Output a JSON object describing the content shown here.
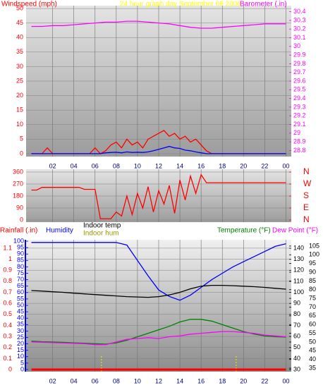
{
  "chart_data": [
    {
      "type": "line",
      "title": "24 hour graph day September 09 2006",
      "xlim": [
        -0.5,
        24.5
      ],
      "xticks": [
        {
          "value": 2,
          "label": "02"
        },
        {
          "value": 4,
          "label": "04"
        },
        {
          "value": 6,
          "label": "06"
        },
        {
          "value": 8,
          "label": "08"
        },
        10,
        12,
        14,
        16,
        18,
        20,
        22,
        {
          "value": 24,
          "label": "00"
        }
      ],
      "axes": [
        {
          "side": "left",
          "label": "Windspeed (mph)",
          "color": "#ff0000",
          "lim": [
            -1,
            51
          ],
          "ticks": [
            0,
            5,
            10,
            15,
            20,
            25,
            30,
            35,
            40,
            45,
            50
          ]
        },
        {
          "side": "right",
          "label": "Barometer (.in)",
          "color": "#ff00ff",
          "lim": [
            28.73,
            30.47
          ],
          "ticks": [
            28.8,
            28.9,
            29,
            29.1,
            29.2,
            29.3,
            29.4,
            29.5,
            29.6,
            29.7,
            29.8,
            29.9,
            30,
            30.1,
            30.2,
            30.3,
            30.4
          ]
        }
      ],
      "series": [
        {
          "color": "#ff0000",
          "axis": 0,
          "x": [
            0,
            0.5,
            1,
            1.5,
            2,
            2.5,
            3,
            3.5,
            4,
            4.5,
            5,
            5.5,
            6,
            6.5,
            7,
            7.5,
            8,
            8.5,
            9,
            9.5,
            10,
            10.5,
            11,
            11.5,
            12,
            12.5,
            13,
            13.5,
            14,
            14.5,
            15,
            15.5,
            16,
            16.5,
            17,
            17.5,
            18,
            18.5,
            19,
            19.5,
            20,
            20.5,
            21,
            21.5,
            22,
            22.5,
            23,
            23.5,
            24
          ],
          "values": [
            0,
            0,
            0,
            2,
            0,
            0,
            0,
            0,
            0,
            0,
            0,
            0,
            2,
            0,
            1,
            3,
            4,
            2,
            5,
            3,
            4,
            2,
            5,
            6,
            7,
            8,
            6,
            7,
            5,
            6,
            4,
            5,
            3,
            1,
            0,
            0,
            0,
            0,
            0,
            0,
            0,
            0,
            0,
            0,
            0,
            0,
            0,
            0,
            0
          ]
        },
        {
          "color": "#0000ff",
          "axis": 0,
          "x": [
            0,
            0.5,
            1,
            1.5,
            2,
            2.5,
            3,
            3.5,
            4,
            4.5,
            5,
            5.5,
            6,
            6.5,
            7,
            7.5,
            8,
            8.5,
            9,
            9.5,
            10,
            10.5,
            11,
            11.5,
            12,
            12.5,
            13,
            13.5,
            14,
            14.5,
            15,
            15.5,
            16,
            16.5,
            17,
            17.5,
            18,
            18.5,
            19,
            19.5,
            20,
            20.5,
            21,
            21.5,
            22,
            22.5,
            23,
            23.5,
            24
          ],
          "values": [
            0,
            0,
            0,
            0,
            0,
            0,
            0,
            0,
            0,
            0,
            0,
            0,
            0,
            0,
            0.3,
            0.4,
            0.5,
            0.3,
            0.6,
            0.4,
            0.5,
            0.4,
            0.6,
            1,
            1.5,
            2,
            2.5,
            2,
            1.8,
            1.2,
            1,
            0.6,
            0.3,
            0,
            0,
            0,
            0,
            0,
            0,
            0,
            0,
            0,
            0,
            0,
            0,
            0,
            0,
            0,
            0
          ]
        },
        {
          "color": "#ff00ff",
          "axis": 1,
          "x": [
            0,
            1,
            2,
            3,
            4,
            5,
            6,
            7,
            8,
            9,
            10,
            11,
            12,
            13,
            14,
            15,
            16,
            17,
            18,
            19,
            20,
            21,
            22,
            23,
            24
          ],
          "values": [
            30.23,
            30.23,
            30.24,
            30.24,
            30.25,
            30.26,
            30.27,
            30.28,
            30.28,
            30.29,
            30.29,
            30.28,
            30.27,
            30.26,
            30.24,
            30.22,
            30.21,
            30.21,
            30.22,
            30.23,
            30.24,
            30.25,
            30.26,
            30.26,
            30.26
          ]
        }
      ]
    },
    {
      "type": "line",
      "xlim": [
        -0.5,
        24.5
      ],
      "xgrid": [
        2,
        4,
        6,
        8,
        10,
        12,
        14,
        16,
        18,
        20,
        22,
        24
      ],
      "axes": [
        {
          "side": "left",
          "color": "#ff0000",
          "lim": [
            -16,
            381
          ],
          "ticks": [
            0,
            90,
            180,
            270,
            360
          ]
        },
        {
          "side": "right",
          "color": "#ff0000",
          "lim": [
            -16,
            381
          ],
          "ticks": [
            {
              "value": 0,
              "label": "N"
            },
            {
              "value": 90,
              "label": "E"
            },
            {
              "value": 180,
              "label": "S"
            },
            {
              "value": 270,
              "label": "W"
            },
            {
              "value": 360,
              "label": "N"
            }
          ]
        }
      ],
      "series": [
        {
          "color": "#ff0000",
          "axis": 0,
          "x": [
            0,
            0.5,
            1,
            1.5,
            2,
            2.5,
            3,
            3.5,
            4,
            4.5,
            5,
            5.5,
            6,
            6.5,
            7,
            7.5,
            8,
            8.5,
            9,
            9.5,
            10,
            10.5,
            11,
            11.5,
            12,
            12.5,
            13,
            13.5,
            14,
            14.5,
            15,
            15.5,
            16,
            16.5,
            17,
            17.5,
            18,
            18.5,
            19,
            19.5,
            20,
            20.5,
            21,
            21.5,
            22,
            22.5,
            23,
            23.5,
            24
          ],
          "values": [
            225,
            225,
            245,
            245,
            245,
            245,
            245,
            245,
            245,
            245,
            230,
            230,
            230,
            10,
            10,
            10,
            60,
            30,
            180,
            40,
            200,
            90,
            250,
            60,
            220,
            120,
            260,
            50,
            300,
            150,
            330,
            200,
            340,
            280,
            280,
            280,
            280,
            280,
            280,
            280,
            280,
            280,
            280,
            280,
            280,
            280,
            280,
            280,
            280
          ]
        }
      ]
    },
    {
      "type": "line",
      "xlim": [
        -0.5,
        24.5
      ],
      "xticks": [
        {
          "value": 2,
          "label": "02"
        },
        {
          "value": 4,
          "label": "04"
        },
        {
          "value": 6,
          "label": "06"
        },
        {
          "value": 8,
          "label": "08"
        },
        10,
        12,
        14,
        16,
        18,
        20,
        22,
        {
          "value": 24,
          "label": "00"
        }
      ],
      "axes": [
        {
          "side": "left",
          "color": "#ff0000",
          "lim": [
            -0.019,
            1.176
          ],
          "ticks": [
            0,
            0.1,
            0.2,
            0.3,
            0.4,
            0.5,
            0.6,
            0.7,
            0.8,
            0.9,
            1,
            1.1
          ]
        },
        {
          "side": "left",
          "color": "#0000ff",
          "lim": [
            -1.65,
            101.1
          ],
          "ticks": [
            0,
            5,
            10,
            15,
            20,
            25,
            30,
            35,
            40,
            45,
            50,
            55,
            60,
            65,
            70,
            75,
            80,
            85,
            90,
            95,
            100
          ]
        },
        {
          "side": "right",
          "color": "#000000",
          "lim": [
            28.1,
            147.7
          ],
          "ticks": [
            30,
            40,
            50,
            60,
            70,
            80,
            90,
            100,
            110,
            120,
            130,
            140
          ]
        },
        {
          "side": "right",
          "color": "#000000",
          "lim": [
            33,
            108.6
          ],
          "ticks": [
            35,
            40,
            45,
            50,
            55,
            60,
            65,
            70,
            75,
            80,
            85,
            90,
            95,
            100,
            105
          ]
        }
      ],
      "series": [
        {
          "name": "Rainfall (.in)",
          "color": "#ff0000",
          "axis": 0,
          "x": [
            0,
            1,
            2,
            3,
            4,
            5,
            6,
            7,
            8,
            9,
            10,
            11,
            12,
            13,
            14,
            15,
            16,
            17,
            18,
            19,
            20,
            21,
            22,
            23,
            24
          ],
          "values": [
            0,
            0,
            0,
            0,
            0,
            0,
            0,
            0,
            0,
            0,
            0,
            0,
            0,
            0,
            0,
            0,
            0,
            0,
            0,
            0,
            0,
            0,
            0,
            0,
            0
          ]
        },
        {
          "name": "Humidity",
          "color": "#0000ff",
          "axis": 1,
          "x": [
            0,
            1,
            2,
            3,
            4,
            5,
            6,
            7,
            8,
            9,
            10,
            11,
            12,
            13,
            14,
            15,
            16,
            17,
            18,
            19,
            20,
            21,
            22,
            23,
            24
          ],
          "values": [
            99,
            99,
            99,
            99,
            99,
            99,
            99,
            99,
            99,
            97,
            85,
            73,
            62,
            57,
            54,
            58,
            64,
            70,
            75,
            80,
            84,
            88,
            92,
            96,
            98
          ]
        },
        {
          "name": "Indoor temp",
          "color": "#000000",
          "axis": 3,
          "x": [
            0,
            1,
            2,
            3,
            4,
            5,
            6,
            7,
            8,
            9,
            10,
            11,
            12,
            13,
            14,
            15,
            16,
            17,
            18,
            19,
            20,
            21,
            22,
            23,
            24
          ],
          "values": [
            79.5,
            79.2,
            78.8,
            78.5,
            78,
            77.6,
            77.2,
            76.8,
            76.4,
            76,
            75.8,
            75.6,
            76,
            77,
            78.5,
            80.5,
            82,
            82.5,
            82.5,
            82.3,
            82,
            81.7,
            81.3,
            80.8,
            80.3
          ]
        },
        {
          "name": "Temperature (°F)",
          "color": "#008000",
          "axis": 3,
          "x": [
            0,
            1,
            2,
            3,
            4,
            5,
            6,
            7,
            8,
            9,
            10,
            11,
            12,
            13,
            14,
            15,
            16,
            17,
            18,
            19,
            20,
            21,
            22,
            23,
            24
          ],
          "values": [
            50.5,
            50.2,
            50,
            49.8,
            49.5,
            49.3,
            49,
            48.8,
            49.5,
            51,
            53,
            55,
            57,
            59,
            61.5,
            63,
            63,
            62,
            60,
            58,
            56,
            54.5,
            53.5,
            53,
            52.8
          ]
        },
        {
          "name": "Dew Point (°F)",
          "color": "#ff00ff",
          "axis": 3,
          "x": [
            0,
            1,
            2,
            3,
            4,
            5,
            6,
            7,
            8,
            9,
            10,
            11,
            12,
            13,
            14,
            15,
            16,
            17,
            18,
            19,
            20,
            21,
            22,
            23,
            24
          ],
          "values": [
            50,
            49.8,
            49.6,
            49.4,
            49.2,
            49,
            48.5,
            48.5,
            50,
            51.5,
            52,
            52.5,
            52,
            53,
            53.5,
            54.5,
            55,
            55.5,
            56,
            56,
            55.5,
            55,
            54,
            53.5,
            53
          ]
        }
      ],
      "extra_label": "Indoor hum",
      "markers_x": [
        6.6,
        19.3
      ],
      "marker_color": "#e0e000"
    }
  ]
}
